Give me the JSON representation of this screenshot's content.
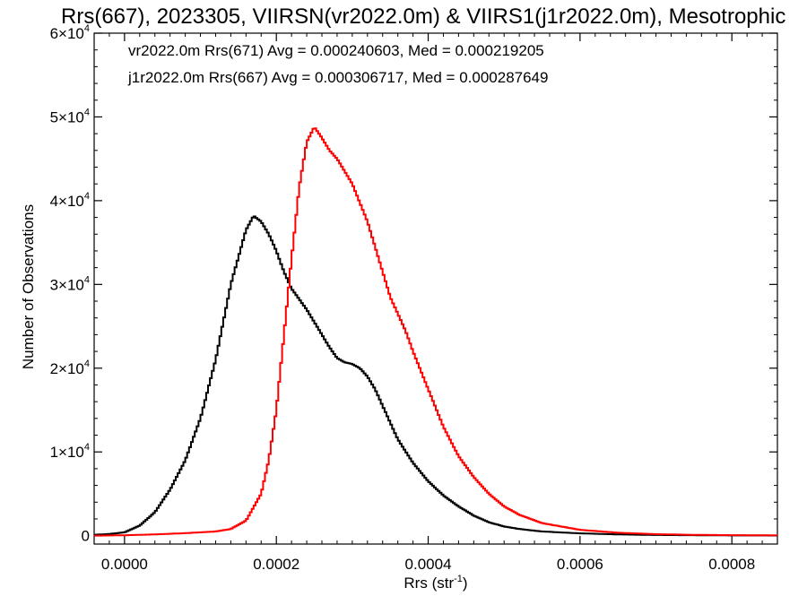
{
  "chart_data": {
    "type": "line",
    "title": "Rrs(667), 2023305, VIIRSN(vr2022.0m) & VIIRS1(j1r2022.0m), Mesotrophic",
    "xlabel_base": "Rrs (str",
    "xlabel_sup": "-1",
    "xlabel_close": ")",
    "ylabel": "Number of Observations",
    "xlim": [
      -4e-05,
      0.00086
    ],
    "ylim": [
      -1000,
      60000
    ],
    "x_ticks": [
      0.0,
      0.0002,
      0.0004,
      0.0006,
      0.0008
    ],
    "x_tick_labels": [
      "0.0000",
      "0.0002",
      "0.0004",
      "0.0006",
      "0.0008"
    ],
    "y_ticks": [
      {
        "value": 0,
        "mant": "0",
        "exp": ""
      },
      {
        "value": 10000,
        "mant": "1×10",
        "exp": "4"
      },
      {
        "value": 20000,
        "mant": "2×10",
        "exp": "4"
      },
      {
        "value": 30000,
        "mant": "3×10",
        "exp": "4"
      },
      {
        "value": 40000,
        "mant": "4×10",
        "exp": "4"
      },
      {
        "value": 50000,
        "mant": "5×10",
        "exp": "4"
      },
      {
        "value": 60000,
        "mant": "6×10",
        "exp": "4"
      }
    ],
    "legend_placement": "top-left",
    "series": [
      {
        "label": "vr2022.0m Rrs(671) Avg = 0.000240603, Med = 0.000219205",
        "color": "#000000",
        "points": [
          [
            -4e-05,
            100
          ],
          [
            -2e-05,
            200
          ],
          [
            0.0,
            400
          ],
          [
            2e-05,
            1200
          ],
          [
            4e-05,
            2800
          ],
          [
            6e-05,
            5500
          ],
          [
            8e-05,
            9000
          ],
          [
            0.0001,
            14000
          ],
          [
            0.00012,
            21000
          ],
          [
            0.00014,
            30000
          ],
          [
            0.00016,
            36500
          ],
          [
            0.00017,
            38200
          ],
          [
            0.00018,
            37500
          ],
          [
            0.00019,
            36000
          ],
          [
            0.0002,
            34000
          ],
          [
            0.00021,
            31500
          ],
          [
            0.00022,
            29500
          ],
          [
            0.00024,
            27000
          ],
          [
            0.00026,
            24000
          ],
          [
            0.00027,
            22500
          ],
          [
            0.00028,
            21200
          ],
          [
            0.00029,
            20700
          ],
          [
            0.0003,
            20500
          ],
          [
            0.00031,
            20000
          ],
          [
            0.00032,
            19000
          ],
          [
            0.00033,
            17500
          ],
          [
            0.00034,
            15500
          ],
          [
            0.00035,
            13500
          ],
          [
            0.00036,
            11500
          ],
          [
            0.00038,
            8700
          ],
          [
            0.0004,
            6500
          ],
          [
            0.00042,
            4800
          ],
          [
            0.00044,
            3500
          ],
          [
            0.00046,
            2400
          ],
          [
            0.00048,
            1600
          ],
          [
            0.0005,
            1100
          ],
          [
            0.00052,
            800
          ],
          [
            0.00055,
            500
          ],
          [
            0.0006,
            280
          ],
          [
            0.00065,
            150
          ],
          [
            0.0007,
            80
          ],
          [
            0.0008,
            30
          ],
          [
            0.00086,
            20
          ]
        ]
      },
      {
        "label": "j1r2022.0m Rrs(667) Avg = 0.000306717, Med = 0.000287649",
        "color": "#ff0000",
        "points": [
          [
            -4e-05,
            0
          ],
          [
            0.0,
            50
          ],
          [
            4e-05,
            150
          ],
          [
            8e-05,
            300
          ],
          [
            0.0001,
            400
          ],
          [
            0.00012,
            500
          ],
          [
            0.00014,
            800
          ],
          [
            0.00016,
            1800
          ],
          [
            0.00018,
            5000
          ],
          [
            0.00019,
            9000
          ],
          [
            0.0002,
            15000
          ],
          [
            0.00021,
            24000
          ],
          [
            0.00022,
            33000
          ],
          [
            0.00023,
            41500
          ],
          [
            0.00024,
            47000
          ],
          [
            0.00025,
            48800
          ],
          [
            0.00026,
            47500
          ],
          [
            0.00027,
            46000
          ],
          [
            0.00028,
            45000
          ],
          [
            0.0003,
            42000
          ],
          [
            0.00032,
            37500
          ],
          [
            0.00034,
            31500
          ],
          [
            0.00035,
            28500
          ],
          [
            0.00036,
            26500
          ],
          [
            0.00037,
            24500
          ],
          [
            0.00038,
            22000
          ],
          [
            0.0004,
            17500
          ],
          [
            0.00042,
            13000
          ],
          [
            0.00044,
            9500
          ],
          [
            0.00046,
            7000
          ],
          [
            0.00048,
            5000
          ],
          [
            0.0005,
            3500
          ],
          [
            0.00052,
            2500
          ],
          [
            0.00055,
            1500
          ],
          [
            0.0006,
            700
          ],
          [
            0.00065,
            350
          ],
          [
            0.0007,
            180
          ],
          [
            0.00075,
            100
          ],
          [
            0.0008,
            60
          ],
          [
            0.00086,
            40
          ]
        ]
      }
    ]
  }
}
